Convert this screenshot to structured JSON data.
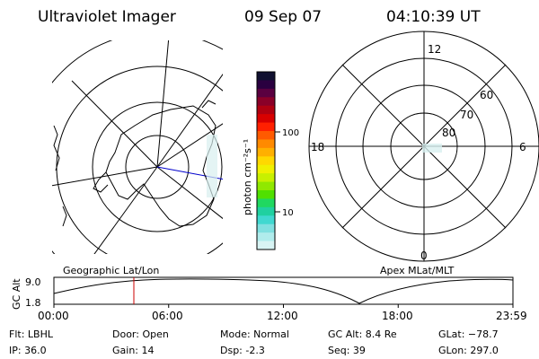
{
  "header": {
    "title": "Ultraviolet Imager",
    "date": "09 Sep 07",
    "time": "04:10:39 UT"
  },
  "colorbar": {
    "unit_label": "photon cm⁻²s⁻¹",
    "ticks": [
      "100",
      "10"
    ],
    "colors": [
      "#101030",
      "#2a0040",
      "#5a0040",
      "#8a0028",
      "#b00010",
      "#d80000",
      "#ff2000",
      "#ff5a00",
      "#ff8a00",
      "#ffb000",
      "#ffd800",
      "#f0f000",
      "#c8f000",
      "#90e800",
      "#50e000",
      "#20d860",
      "#20d0a0",
      "#40d8d0",
      "#80e0e0",
      "#b0ecec",
      "#d8f4f4"
    ]
  },
  "right_map": {
    "mlt_labels": {
      "top": "12",
      "left": "18",
      "right": "6",
      "bottom": "0"
    },
    "lat_labels": [
      "60",
      "70",
      "80"
    ]
  },
  "plot": {
    "left_title": "Geographic Lat/Lon",
    "right_title": "Apex MLat/MLT",
    "ylabel": "GC Alt",
    "yticks": [
      "9.0",
      "1.8"
    ],
    "xticks": [
      "00:00",
      "06:00",
      "12:00",
      "18:00",
      "23:59"
    ],
    "marker_color": "#cc0000",
    "marker_time_hours": 4.18
  },
  "status": {
    "flt": "Flt: LBHL",
    "ip": "IP: 36.0",
    "door": "Door: Open",
    "gain": "Gain: 14",
    "mode": "Mode: Normal",
    "dsp": "Dsp:    -2.3",
    "gc_alt": "GC Alt: 8.4 Re",
    "seq": "Seq: 39",
    "glat": "GLat: −78.7",
    "glon": "GLon: 297.0"
  }
}
